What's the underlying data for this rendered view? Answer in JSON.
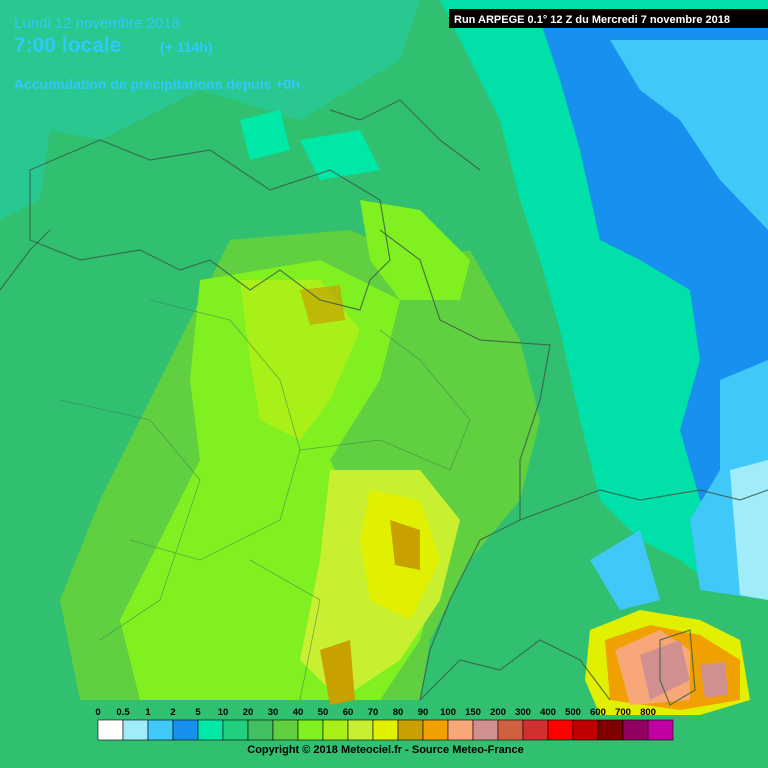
{
  "header": {
    "date": "Lundi 12 novembre 2018",
    "time": "7:00 locale",
    "lead": "(+ 114h)",
    "subtitle": "Accumulation de précipitations depuis +0h",
    "run": "Run ARPEGE 0.1° 12 Z du Mercredi 7 novembre 2018"
  },
  "legend": {
    "items": [
      {
        "label": "0",
        "color": "#ffffff"
      },
      {
        "label": "0.5",
        "color": "#a0ecfa"
      },
      {
        "label": "1",
        "color": "#40c8f8"
      },
      {
        "label": "2",
        "color": "#1890f0"
      },
      {
        "label": "5",
        "color": "#00e8a8"
      },
      {
        "label": "10",
        "color": "#20d080"
      },
      {
        "label": "20",
        "color": "#40c060"
      },
      {
        "label": "30",
        "color": "#60d040"
      },
      {
        "label": "40",
        "color": "#80f020"
      },
      {
        "label": "50",
        "color": "#a8f018"
      },
      {
        "label": "60",
        "color": "#c8f030"
      },
      {
        "label": "70",
        "color": "#e0f000"
      },
      {
        "label": "80",
        "color": "#c8a000"
      },
      {
        "label": "90",
        "color": "#f0a000"
      },
      {
        "label": "100",
        "color": "#f8a878"
      },
      {
        "label": "150",
        "color": "#d09090"
      },
      {
        "label": "200",
        "color": "#d06040"
      },
      {
        "label": "300",
        "color": "#d03030"
      },
      {
        "label": "400",
        "color": "#ff0000"
      },
      {
        "label": "500",
        "color": "#c00000"
      },
      {
        "label": "600",
        "color": "#800000"
      },
      {
        "label": "700",
        "color": "#900060"
      },
      {
        "label": "800",
        "color": "#c000a0"
      }
    ],
    "copyright": "Copyright © 2018 Meteociel.fr - Source Meteo-France"
  }
}
